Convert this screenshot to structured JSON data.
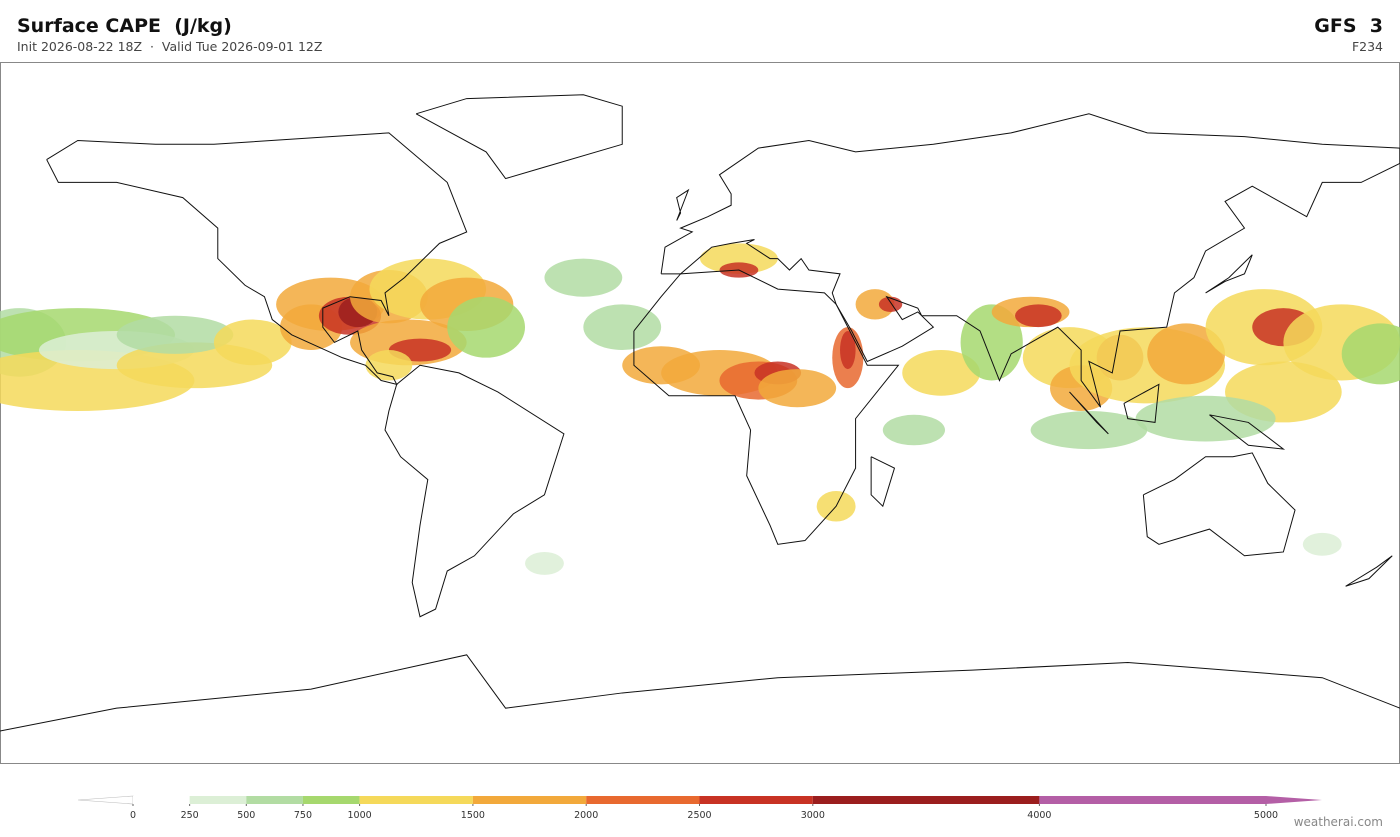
{
  "header": {
    "title": "Surface CAPE  (J/kg)",
    "subtitle": "Init 2026-08-22 18Z  ·  Valid Tue 2026-09-01 12Z",
    "model": "GFS  3",
    "forecast_hour": "F234"
  },
  "colorbar": {
    "ticks": [
      0,
      250,
      500,
      750,
      1000,
      1500,
      2000,
      2500,
      3000,
      4000,
      5000
    ],
    "colors": [
      "#ffffff",
      "#dcefd6",
      "#b2dca3",
      "#a6d86e",
      "#f5d95a",
      "#f2a93b",
      "#e8692f",
      "#c83224",
      "#9b1e1e",
      "#b45fa6"
    ],
    "extend_colors": [
      "#ffffff",
      "#b45fa6"
    ]
  },
  "footer": {
    "credit": "weatherai.com"
  }
}
